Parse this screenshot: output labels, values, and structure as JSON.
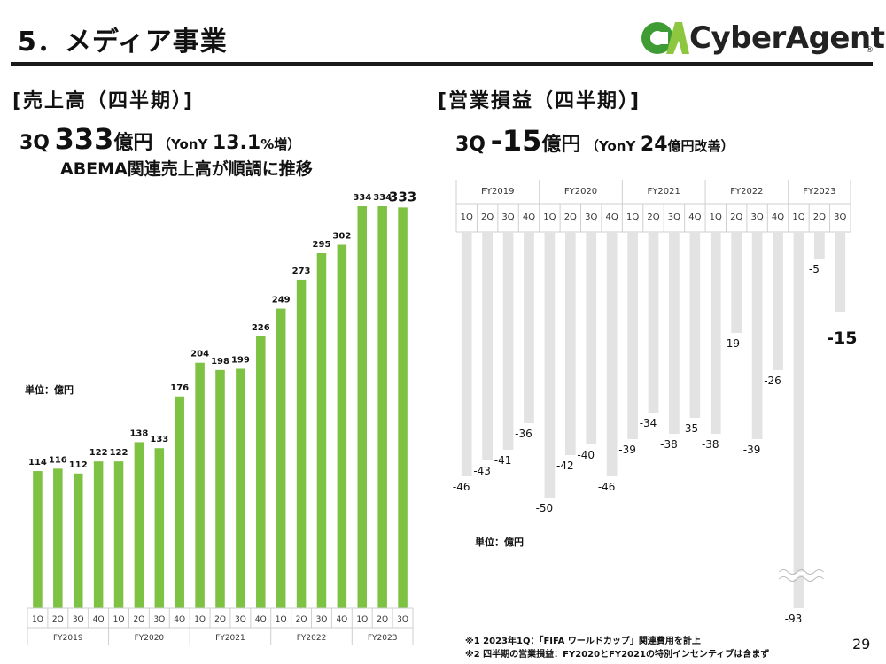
{
  "header": {
    "title": "5．メディア事業",
    "logo_text": "CyberAgent",
    "logo_reg": "®"
  },
  "left": {
    "section": "[売上高（四半期）]",
    "hl_q": "3Q",
    "hl_value": "333",
    "hl_unit": "億円",
    "hl_yoy_prefix": "（YonY",
    "hl_yoy_value": "13.1",
    "hl_yoy_suffix": "%増）",
    "subline": "ABEMA関連売上高が順調に推移",
    "unit_label": "単位：億円"
  },
  "right": {
    "section": "[営業損益（四半期）]",
    "hl_q": "3Q",
    "hl_value": "-15",
    "hl_unit": "億円",
    "hl_yoy_prefix": "（YonY",
    "hl_yoy_value": "24",
    "hl_yoy_suffix": "億円改善）",
    "unit_label": "単位：億円"
  },
  "notes": [
    "※1 2023年1Q：「FIFA ワールドカップ」関連費用を計上",
    "※2 四半期の営業損益：FY2020とFY2021の特別インセンティブは含まず"
  ],
  "page_number": "29",
  "colors": {
    "revenue_bar": "#7dc242",
    "profit_bar": "#e3e3e3",
    "grid": "#cfcfcf"
  },
  "chart_data": [
    {
      "type": "bar",
      "title": "売上高（四半期）",
      "unit": "単位：億円",
      "quarters": [
        "1Q",
        "2Q",
        "3Q",
        "4Q",
        "1Q",
        "2Q",
        "3Q",
        "4Q",
        "1Q",
        "2Q",
        "3Q",
        "4Q",
        "1Q",
        "2Q",
        "3Q",
        "4Q",
        "1Q",
        "2Q",
        "3Q"
      ],
      "fiscal_years": [
        "FY2019",
        "FY2020",
        "FY2021",
        "FY2022",
        "FY2023"
      ],
      "values": [
        114,
        116,
        112,
        122,
        122,
        138,
        133,
        176,
        204,
        198,
        199,
        226,
        249,
        273,
        295,
        302,
        334,
        334,
        333
      ],
      "labels": [
        "114",
        "116",
        "112",
        "122",
        "122",
        "138",
        "133",
        "176",
        "204",
        "198",
        "199",
        "226",
        "249",
        "273",
        "295",
        "302",
        "334",
        "334",
        "333"
      ],
      "ylim": [
        0,
        340
      ]
    },
    {
      "type": "bar",
      "title": "営業損益（四半期）",
      "unit": "単位：億円",
      "quarters": [
        "1Q",
        "2Q",
        "3Q",
        "4Q",
        "1Q",
        "2Q",
        "3Q",
        "4Q",
        "1Q",
        "2Q",
        "3Q",
        "4Q",
        "1Q",
        "2Q",
        "3Q",
        "4Q",
        "1Q",
        "2Q",
        "3Q"
      ],
      "fiscal_years": [
        "FY2019",
        "FY2020",
        "FY2021",
        "FY2022",
        "FY2023"
      ],
      "values": [
        -46,
        -43,
        -41,
        -36,
        -50,
        -42,
        -40,
        -46,
        -39,
        -34,
        -38,
        -35,
        -38,
        -19,
        -39,
        -26,
        -93,
        -5,
        -15
      ],
      "labels": [
        "-46",
        "-43",
        "-41",
        "-36",
        "-50",
        "-42",
        "-40",
        "-46",
        "-39",
        "-34",
        "-38",
        "-35",
        "-38",
        "-19",
        "-39",
        "-26",
        "-93",
        "-5",
        "-15"
      ],
      "axis_break": "1Q FY2023"
    }
  ]
}
